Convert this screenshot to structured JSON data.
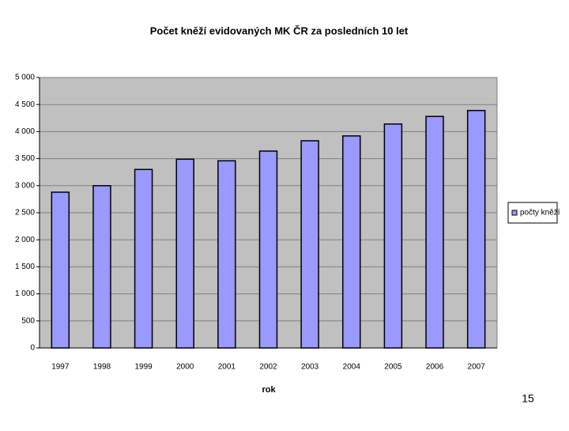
{
  "chart_data": {
    "type": "bar",
    "title": "Počet kněží evidovaných MK ČR za posledních 10 let",
    "x_label": "rok",
    "categories": [
      "1997",
      "1998",
      "1999",
      "2000",
      "2001",
      "2002",
      "2003",
      "2004",
      "2005",
      "2006",
      "2007"
    ],
    "series": [
      {
        "name": "počty kněží",
        "color": "#9999ff",
        "values": [
          2880,
          3000,
          3300,
          3490,
          3460,
          3640,
          3830,
          3920,
          4140,
          4280,
          4390
        ]
      }
    ],
    "ylim": [
      0,
      5000
    ],
    "yticks": [
      0,
      500,
      {
        "value": 1000,
        "label": "1 000"
      },
      {
        "value": 1500,
        "label": "1 500"
      },
      {
        "value": 2000,
        "label": "2 000"
      },
      {
        "value": 2500,
        "label": "2 500"
      },
      {
        "value": 3000,
        "label": "3 000"
      },
      {
        "value": 3500,
        "label": "3 500"
      },
      {
        "value": 4000,
        "label": "4 000"
      },
      {
        "value": 4500,
        "label": "4 500"
      },
      {
        "value": 5000,
        "label": "5 000"
      }
    ],
    "grid": true,
    "legend": "right"
  },
  "page_number": "15"
}
